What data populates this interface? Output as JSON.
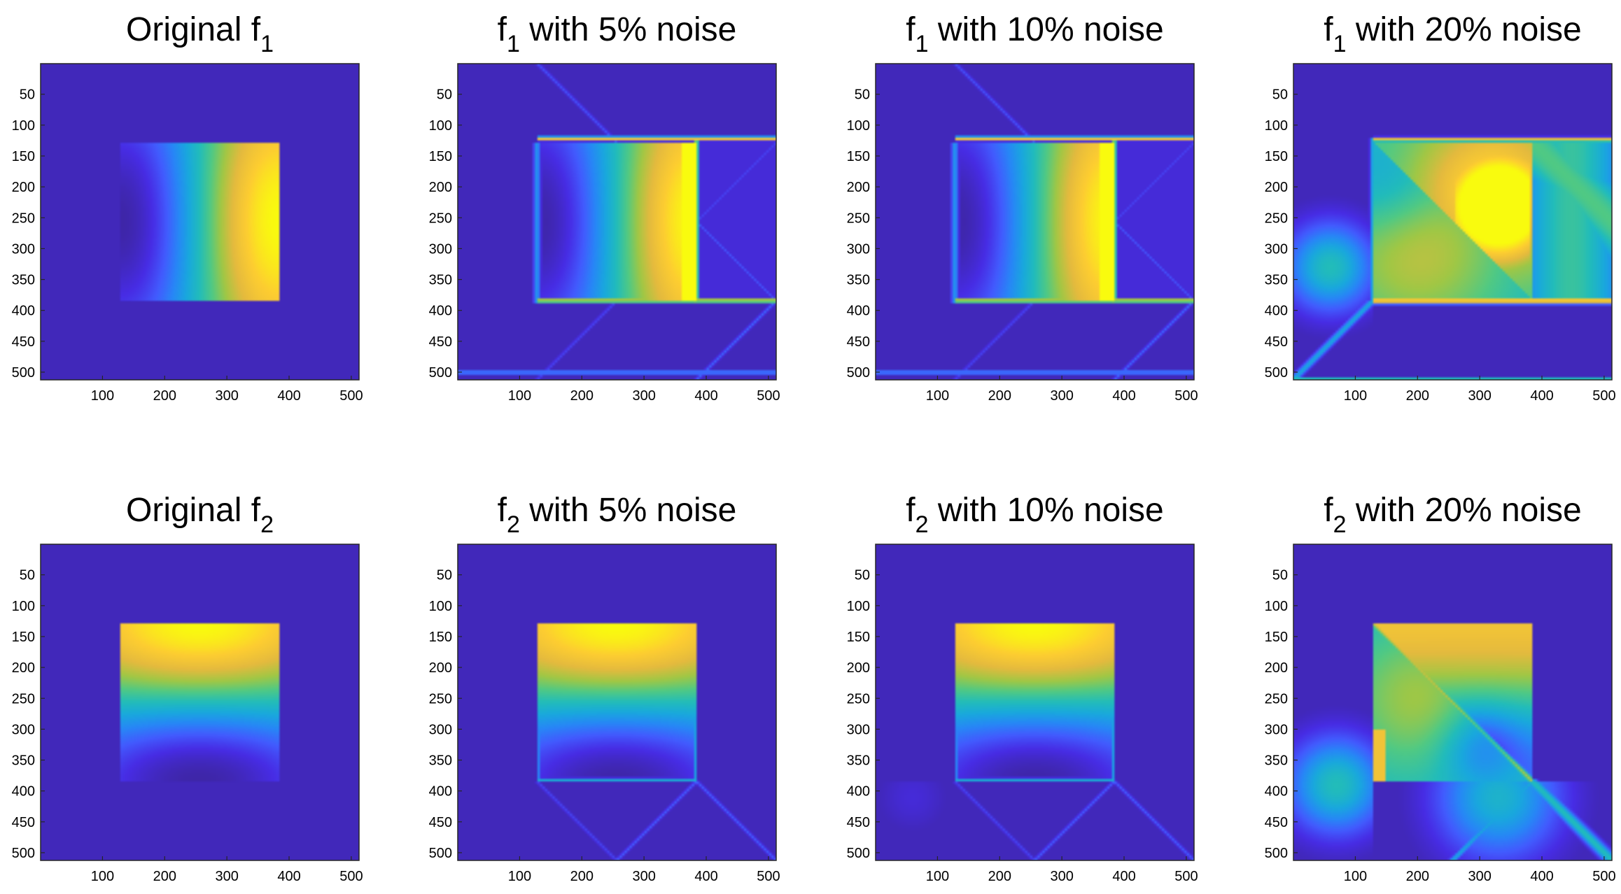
{
  "chart_data": {
    "type": "heatmap",
    "colormap": "parula",
    "grid": false,
    "panels": [
      {
        "title": {
          "pre": "Original f",
          "sub": "1",
          "post": ""
        },
        "variant": "f1_orig"
      },
      {
        "title": {
          "pre": "f",
          "sub": "1",
          "post": " with 5% noise"
        },
        "variant": "f1_n5"
      },
      {
        "title": {
          "pre": "f",
          "sub": "1",
          "post": " with 10% noise"
        },
        "variant": "f1_n10"
      },
      {
        "title": {
          "pre": "f",
          "sub": "1",
          "post": " with 20% noise"
        },
        "variant": "f1_n20"
      },
      {
        "title": {
          "pre": "Original f",
          "sub": "2",
          "post": ""
        },
        "variant": "f2_orig"
      },
      {
        "title": {
          "pre": "f",
          "sub": "2",
          "post": " with 5% noise"
        },
        "variant": "f2_n5"
      },
      {
        "title": {
          "pre": "f",
          "sub": "2",
          "post": " with 10% noise"
        },
        "variant": "f2_n10"
      },
      {
        "title": {
          "pre": "f",
          "sub": "2",
          "post": " with 20% noise"
        },
        "variant": "f2_n20"
      }
    ],
    "xlim": [
      1,
      512
    ],
    "ylim": [
      1,
      512
    ],
    "y_reversed": true,
    "x_ticks": [
      100,
      200,
      300,
      400,
      500
    ],
    "y_ticks": [
      50,
      100,
      150,
      200,
      250,
      300,
      350,
      400,
      450,
      500
    ],
    "square_region": {
      "x": [
        128,
        384
      ],
      "y": [
        128,
        384
      ]
    },
    "colors": {
      "background": "#3a2d9b",
      "low": "#3e26a8",
      "high": "#f9fb0e"
    }
  }
}
